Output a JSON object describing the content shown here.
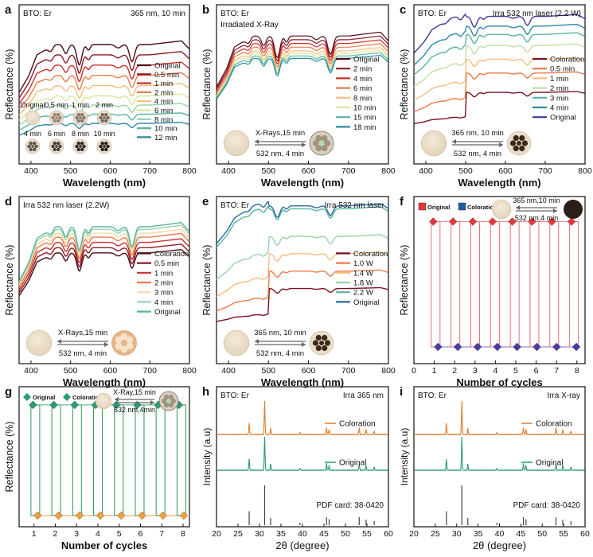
{
  "chart_data": [
    {
      "letter": "a",
      "type": "line",
      "sample": "BTO: Er",
      "note": "365 nm, 10 min",
      "xlabel": "Wavelength (nm)",
      "ylabel": "Reflectance (%)",
      "xlim": [
        370,
        800
      ],
      "xticks": [
        400,
        500,
        600,
        700,
        800
      ],
      "ylim": [
        0,
        100
      ],
      "legend": "right",
      "series": [
        {
          "name": "Original",
          "color": "#4a0c14"
        },
        {
          "name": "0.5 min",
          "color": "#8a1a26"
        },
        {
          "name": "1 min",
          "color": "#c8302a"
        },
        {
          "name": "2 min",
          "color": "#ec7a4a"
        },
        {
          "name": "4 min",
          "color": "#f6bd7e"
        },
        {
          "name": "6 min",
          "color": "#d8e79b"
        },
        {
          "name": "8 min",
          "color": "#9ad2a8"
        },
        {
          "name": "10 min",
          "color": "#57b4a2"
        },
        {
          "name": "12 min",
          "color": "#2a8aa2"
        }
      ],
      "levels": [
        0.92,
        0.83,
        0.74,
        0.65,
        0.56,
        0.47,
        0.39,
        0.31,
        0.23
      ],
      "series_width": 1.4,
      "inset": {
        "type": "grid",
        "labels": [
          "Original",
          "0.5 min",
          "1 min",
          "2 min",
          "4 min",
          "6 min",
          "8 min",
          "10 min"
        ],
        "darkness": [
          0,
          0.2,
          0.3,
          0.42,
          0.58,
          0.72,
          0.88,
          0.96
        ]
      }
    },
    {
      "letter": "b",
      "type": "line",
      "sample": "BTO: Er",
      "note": "Irradiated X-Ray",
      "xlabel": "Wavelength (nm)",
      "ylabel": "Reflectance (%)",
      "xlim": [
        370,
        800
      ],
      "xticks": [
        400,
        500,
        600,
        700,
        800
      ],
      "ylim": [
        0,
        100
      ],
      "legend": "right",
      "series": [
        {
          "name": "Original",
          "color": "#4a0c14"
        },
        {
          "name": "2 min",
          "color": "#8a1a26"
        },
        {
          "name": "4 min",
          "color": "#c8302a"
        },
        {
          "name": "6 min",
          "color": "#ec7a4a"
        },
        {
          "name": "8 min",
          "color": "#f6bd7e"
        },
        {
          "name": "10 min",
          "color": "#d8e79b"
        },
        {
          "name": "15 min",
          "color": "#57b4a2"
        },
        {
          "name": "18 min",
          "color": "#2a8aa2"
        }
      ],
      "levels": [
        0.9,
        0.87,
        0.84,
        0.81,
        0.78,
        0.76,
        0.74,
        0.72
      ],
      "series_width": 1.2,
      "inset": {
        "type": "disk",
        "top": "X-Rays,15 min",
        "bottom": "532 nm, 4 min",
        "left": "plain",
        "right": "starburst"
      }
    },
    {
      "letter": "c",
      "type": "line",
      "sample": "BTO: Er",
      "note": "Irra 532 nm laser (2.2 W)",
      "xlabel": "Wavelength (nm)",
      "ylabel": "Reflectance (%)",
      "xlim": [
        370,
        800
      ],
      "xticks": [
        400,
        500,
        600,
        700,
        800
      ],
      "ylim": [
        0,
        100
      ],
      "legend": "right",
      "series": [
        {
          "name": "Coloration",
          "color": "#7a1020"
        },
        {
          "name": "0.5 min",
          "color": "#ec7a4a"
        },
        {
          "name": "1 min",
          "color": "#f6bd7e"
        },
        {
          "name": "2 min",
          "color": "#bfe0a0"
        },
        {
          "name": "3 min",
          "color": "#57b4a2"
        },
        {
          "name": "4 min",
          "color": "#2a8aa2"
        },
        {
          "name": "Original",
          "color": "#3a3a9a"
        }
      ],
      "levels": [
        0.38,
        0.52,
        0.62,
        0.72,
        0.8,
        0.86,
        0.93
      ],
      "series_width": 1.4,
      "inset": {
        "type": "disk",
        "top": "365 nm, 10 min",
        "bottom": "532 nm, 4 min",
        "left": "plain",
        "right": "holes"
      }
    },
    {
      "letter": "d",
      "type": "line",
      "sample": "",
      "note": "Irra 532 nm laser (2.2W)",
      "xlabel": "Wavelength (nm)",
      "ylabel": "Reflectance (%)",
      "xlim": [
        370,
        800
      ],
      "xticks": [
        400,
        500,
        600,
        700,
        800
      ],
      "ylim": [
        0,
        100
      ],
      "legend": "right",
      "series": [
        {
          "name": "Coloration",
          "color": "#4a0c14"
        },
        {
          "name": "0.5 min",
          "color": "#8a1a26"
        },
        {
          "name": "1 min",
          "color": "#c8302a"
        },
        {
          "name": "2 min",
          "color": "#ec7a4a"
        },
        {
          "name": "3 min",
          "color": "#f6d9a0"
        },
        {
          "name": "4 min",
          "color": "#9ad2a8"
        },
        {
          "name": "Original",
          "color": "#57b4a2"
        }
      ],
      "levels": [
        0.72,
        0.76,
        0.8,
        0.84,
        0.87,
        0.9,
        0.92
      ],
      "series_width": 1.4,
      "inset": {
        "type": "disk",
        "top": "X-Rays,15 min",
        "bottom": "532 nm, 4 min",
        "left": "plain",
        "right": "ring"
      }
    },
    {
      "letter": "e",
      "type": "line",
      "sample": "BTO: Er",
      "note": "Irra 532 nm laser",
      "xlabel": "Wavelength (nm)",
      "ylabel": "Reflectance (%)",
      "xlim": [
        370,
        800
      ],
      "xticks": [
        400,
        500,
        600,
        700,
        800
      ],
      "ylim": [
        0,
        100
      ],
      "legend": "right",
      "series": [
        {
          "name": "Coloration",
          "color": "#7a1020"
        },
        {
          "name": "1.0 W",
          "color": "#ec7a4a"
        },
        {
          "name": "1.4 W",
          "color": "#f6bd7e"
        },
        {
          "name": "1.8 W",
          "color": "#9ad2a8"
        },
        {
          "name": "2.2 W",
          "color": "#57b4a2"
        },
        {
          "name": "Original",
          "color": "#2a6aa2"
        }
      ],
      "levels": [
        0.38,
        0.5,
        0.62,
        0.74,
        0.93,
        0.95
      ],
      "series_width": 1.4,
      "inset": {
        "type": "disk",
        "top": "365 nm, 10 min",
        "bottom": "532 nm, 4 min",
        "left": "plain",
        "right": "holes"
      }
    },
    {
      "letter": "f",
      "type": "cycle",
      "xlabel": "Number of cycles",
      "ylabel": "Reflectance (%)",
      "xlim": [
        0,
        8.4
      ],
      "xticks": [
        0,
        1,
        2,
        3,
        4,
        5,
        6,
        7,
        8
      ],
      "high": 0.85,
      "low": 0.1,
      "high_color": "#e5383b",
      "low_color": "#4a3aa8",
      "line_high": "#e87070",
      "line_low": "#7a70c8",
      "legend_items": [
        "Original",
        "Coloration"
      ],
      "legend_colors": [
        "#e5383b",
        "#1f5fa0"
      ],
      "inset": {
        "type": "disk2",
        "top": "365 nm,10 min",
        "bottom": "532 nm,4 min"
      }
    },
    {
      "letter": "g",
      "type": "cycle",
      "xlabel": "Number of cycles",
      "ylabel": "Reflectance (%)",
      "xlim": [
        0.3,
        8.3
      ],
      "xticks": [
        1,
        2,
        3,
        4,
        5,
        6,
        7,
        8
      ],
      "high": 0.87,
      "low": 0.08,
      "high_color": "#2a9a78",
      "low_color": "#f0a040",
      "line_high": "#2a9a50",
      "line_low": "#f0a040",
      "legend_items": [
        "Original",
        "Coloration"
      ],
      "legend_colors": [
        "#2a9a78",
        "#2a9a78"
      ],
      "inset": {
        "type": "disk",
        "top": "X-Ray,15 min",
        "bottom": "532 nm,4min",
        "left": "plain",
        "right": "starburst"
      }
    },
    {
      "letter": "h",
      "type": "xrd",
      "sample": "BTO: Er",
      "note": "Irra 365 nm",
      "xlabel": "2θ (degree)",
      "ylabel": "Intensity (a.u)",
      "xlim": [
        20,
        60
      ],
      "xticks": [
        20,
        25,
        30,
        35,
        40,
        45,
        50,
        55,
        60
      ],
      "traces": [
        {
          "name": "Coloration",
          "color": "#e07a2a"
        },
        {
          "name": "Original",
          "color": "#2a9a6a"
        }
      ],
      "pdf_card": "PDF card: 38-0420",
      "peaks_2theta": [
        27.6,
        31.2,
        32.6,
        39.4,
        45.6,
        46.2,
        53.2,
        54.8,
        56.7
      ],
      "peaks_rel": [
        0.35,
        1.0,
        0.18,
        0.06,
        0.2,
        0.15,
        0.2,
        0.14,
        0.1
      ]
    },
    {
      "letter": "i",
      "type": "xrd",
      "sample": "BTO: Er",
      "note": "Irra X-ray",
      "xlabel": "2θ (degree)",
      "ylabel": "Intensity (a.u)",
      "xlim": [
        20,
        60
      ],
      "xticks": [
        20,
        25,
        30,
        35,
        40,
        45,
        50,
        55,
        60
      ],
      "traces": [
        {
          "name": "Coloration",
          "color": "#e07a2a"
        },
        {
          "name": "Original",
          "color": "#2a9a6a"
        }
      ],
      "pdf_card": "PDF card: 38-0420",
      "peaks_2theta": [
        27.6,
        31.2,
        32.6,
        39.4,
        45.6,
        46.2,
        53.2,
        54.8,
        56.7
      ],
      "peaks_rel": [
        0.35,
        1.0,
        0.18,
        0.06,
        0.2,
        0.15,
        0.2,
        0.14,
        0.1
      ]
    }
  ]
}
